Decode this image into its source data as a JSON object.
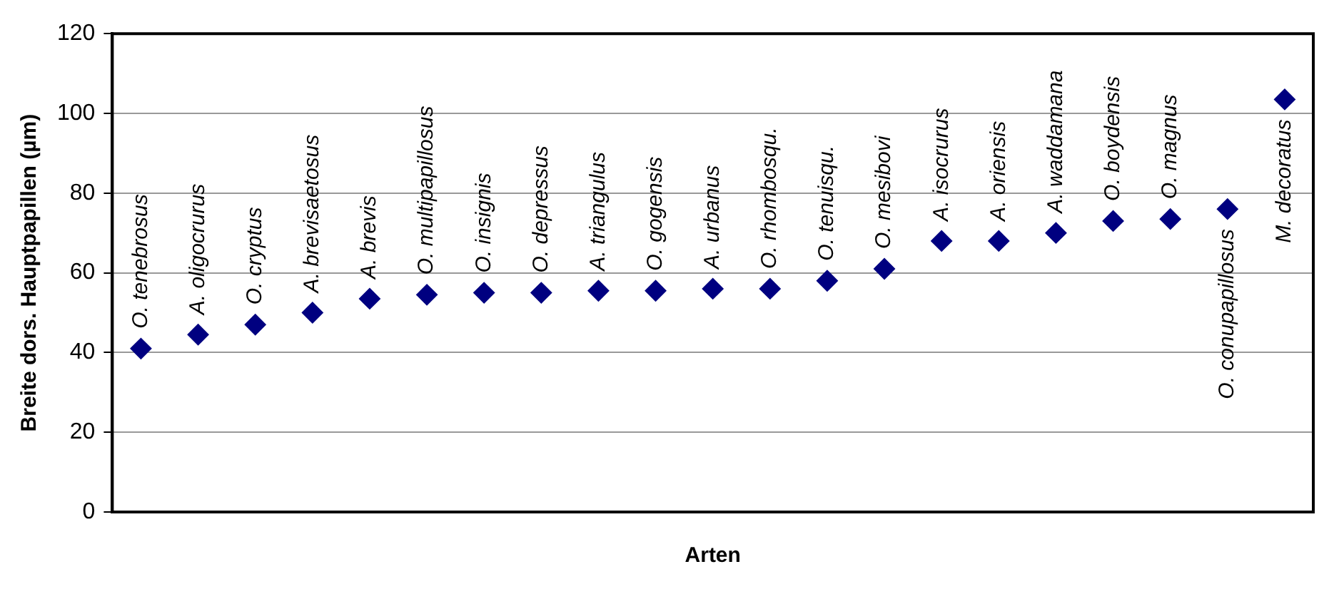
{
  "chart_data": {
    "type": "scatter",
    "ylabel": "Breite dors. Hauptpapillen (µm)",
    "xlabel": "Arten",
    "categories": [
      "O. tenebrosus",
      "A. oligocrurus",
      "O. cryptus",
      "A. brevisaetosus",
      "A. brevis",
      "O. multipapillosus",
      "O. insignis",
      "O. depressus",
      "A. triangulus",
      "O. gogensis",
      "A. urbanus",
      "O. rhombosqu.",
      "O. tenuisqu.",
      "O. mesibovi",
      "A. isocrurus",
      "A. oriensis",
      "A. waddamana",
      "O. boydensis",
      "O. magnus",
      "O. conupapillosus",
      "M. decoratus"
    ],
    "values": [
      41,
      44.5,
      47,
      50,
      53.5,
      54.5,
      55,
      55,
      55.5,
      55.5,
      56,
      56,
      58,
      61,
      68,
      68,
      70,
      73,
      73.5,
      76,
      103.5
    ],
    "color": "#000080",
    "marker": "diamond",
    "ylim": [
      0,
      120
    ],
    "yticks": [
      0,
      20,
      40,
      60,
      80,
      100,
      120
    ],
    "grid": "y"
  }
}
